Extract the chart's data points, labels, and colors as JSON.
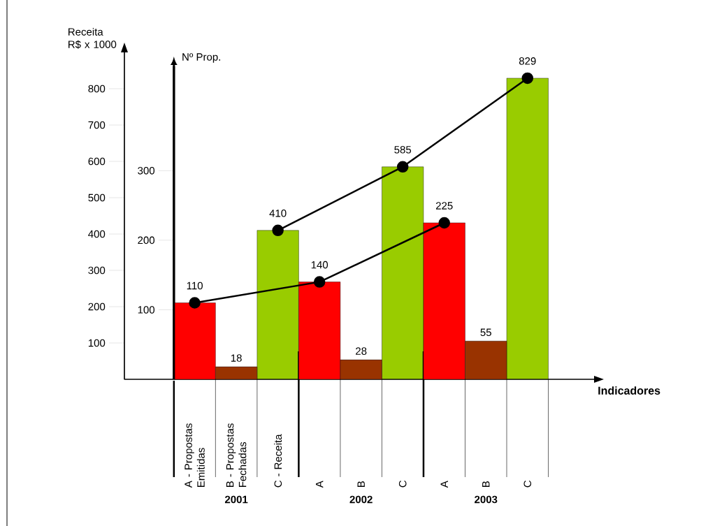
{
  "chart_data": {
    "type": "bar",
    "xlabel": "Indicadores",
    "ylabel": "Receita R$ x 1000",
    "y2label": "Nº Prop.",
    "categories": [
      "A - Propostas Emitidas",
      "B - Propostas Fechadas",
      "C - Receita",
      "A",
      "B",
      "C",
      "A",
      "B",
      "C"
    ],
    "ylim": [
      0,
      900
    ],
    "yticks": [
      100,
      200,
      300,
      400,
      500,
      600,
      700,
      800
    ],
    "y2lim": [
      0,
      450
    ],
    "y2ticks": [
      100,
      200,
      300
    ],
    "series": [
      {
        "type": "bar",
        "axis": "y2",
        "color": "#ff0000",
        "values": [
          110,
          null,
          null,
          140,
          null,
          null,
          225,
          null,
          null
        ]
      },
      {
        "type": "bar",
        "axis": "y2",
        "color": "#993300",
        "values": [
          null,
          18,
          null,
          null,
          28,
          null,
          null,
          55,
          null
        ],
        "value_labels": [
          null,
          "18",
          null,
          null,
          "28",
          null,
          null,
          "55",
          null
        ]
      },
      {
        "type": "bar",
        "axis": "y",
        "color": "#99cc00",
        "values": [
          null,
          null,
          410,
          null,
          null,
          585,
          null,
          null,
          829
        ]
      },
      {
        "type": "line",
        "axis": "y2",
        "color": "#000000",
        "marker": "circle",
        "values": [
          110,
          null,
          null,
          140,
          null,
          null,
          225,
          null,
          null
        ],
        "value_labels": [
          "110",
          null,
          null,
          "140",
          null,
          null,
          "225",
          null,
          null
        ]
      },
      {
        "type": "line",
        "axis": "y",
        "color": "#000000",
        "marker": "circle",
        "values": [
          null,
          null,
          410,
          null,
          null,
          585,
          null,
          null,
          829
        ],
        "value_labels": [
          null,
          null,
          "410",
          null,
          null,
          "585",
          null,
          null,
          "829"
        ]
      }
    ],
    "annotations": [
      "2001",
      "2002",
      "2003"
    ]
  }
}
